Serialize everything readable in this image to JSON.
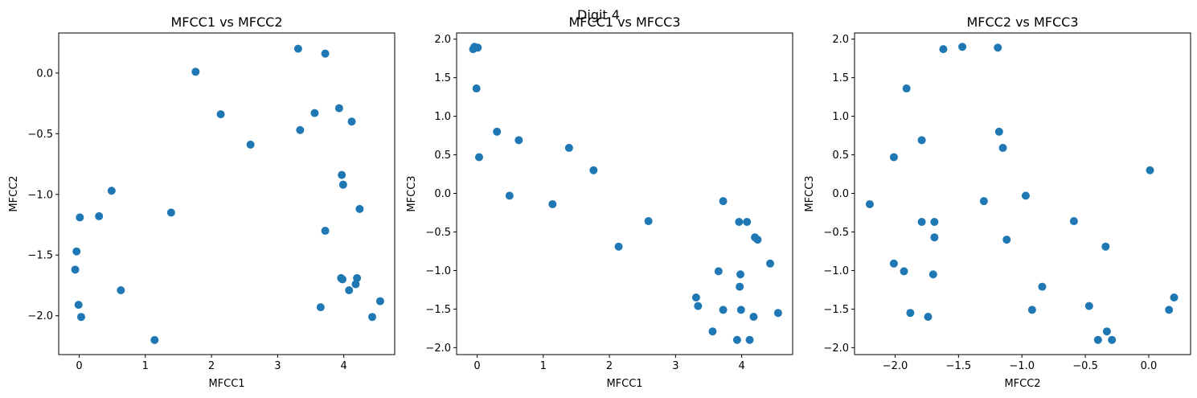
{
  "figure": {
    "suptitle": "Digit 4"
  },
  "chart_data": [
    {
      "type": "scatter",
      "title": "MFCC1 vs MFCC2",
      "xlabel": "MFCC1",
      "ylabel": "MFCC2",
      "xlim": [
        -0.31,
        4.77
      ],
      "ylim": [
        -2.32,
        0.33
      ],
      "xticks": [
        0,
        1,
        2,
        3,
        4
      ],
      "yticks": [
        -2.0,
        -1.5,
        -1.0,
        -0.5,
        0.0
      ],
      "ytick_labels": [
        "−2.0",
        "−1.5",
        "−1.0",
        "−0.5",
        "0.0"
      ],
      "marker_color": "#1f77b4",
      "points": [
        [
          3.31,
          0.2
        ],
        [
          3.72,
          0.16
        ],
        [
          1.76,
          0.01
        ],
        [
          2.14,
          -0.34
        ],
        [
          3.56,
          -0.33
        ],
        [
          3.93,
          -0.29
        ],
        [
          3.34,
          -0.47
        ],
        [
          4.12,
          -0.4
        ],
        [
          2.59,
          -0.59
        ],
        [
          3.97,
          -0.84
        ],
        [
          3.99,
          -0.92
        ],
        [
          0.49,
          -0.97
        ],
        [
          0.01,
          -1.19
        ],
        [
          0.3,
          -1.18
        ],
        [
          1.39,
          -1.15
        ],
        [
          4.24,
          -1.12
        ],
        [
          3.72,
          -1.3
        ],
        [
          -0.04,
          -1.47
        ],
        [
          -0.06,
          -1.62
        ],
        [
          3.96,
          -1.69
        ],
        [
          3.98,
          -1.7
        ],
        [
          4.2,
          -1.69
        ],
        [
          4.18,
          -1.74
        ],
        [
          0.63,
          -1.79
        ],
        [
          4.08,
          -1.79
        ],
        [
          -0.01,
          -1.91
        ],
        [
          3.65,
          -1.93
        ],
        [
          0.03,
          -2.01
        ],
        [
          4.43,
          -2.01
        ],
        [
          4.55,
          -1.88
        ],
        [
          1.14,
          -2.2
        ]
      ]
    },
    {
      "type": "scatter",
      "title": "MFCC1 vs MFCC3",
      "xlabel": "MFCC1",
      "ylabel": "MFCC3",
      "xlim": [
        -0.31,
        4.77
      ],
      "ylim": [
        -2.09,
        2.08
      ],
      "xticks": [
        0,
        1,
        2,
        3,
        4
      ],
      "yticks": [
        -2.0,
        -1.5,
        -1.0,
        -0.5,
        0.0,
        0.5,
        1.0,
        1.5,
        2.0
      ],
      "ytick_labels": [
        "−2.0",
        "−1.5",
        "−1.0",
        "−0.5",
        "0.0",
        "0.5",
        "1.0",
        "1.5",
        "2.0"
      ],
      "marker_color": "#1f77b4",
      "points": [
        [
          -0.06,
          1.87
        ],
        [
          -0.04,
          1.9
        ],
        [
          0.01,
          1.89
        ],
        [
          -0.01,
          1.36
        ],
        [
          0.3,
          0.8
        ],
        [
          0.63,
          0.69
        ],
        [
          0.03,
          0.47
        ],
        [
          1.39,
          0.59
        ],
        [
          1.76,
          0.3
        ],
        [
          0.49,
          -0.03
        ],
        [
          1.14,
          -0.14
        ],
        [
          3.72,
          -0.1
        ],
        [
          2.59,
          -0.36
        ],
        [
          3.96,
          -0.37
        ],
        [
          4.08,
          -0.37
        ],
        [
          4.2,
          -0.57
        ],
        [
          4.24,
          -0.6
        ],
        [
          2.14,
          -0.69
        ],
        [
          4.43,
          -0.91
        ],
        [
          3.65,
          -1.01
        ],
        [
          3.98,
          -1.05
        ],
        [
          3.97,
          -1.21
        ],
        [
          3.31,
          -1.35
        ],
        [
          3.34,
          -1.46
        ],
        [
          3.72,
          -1.51
        ],
        [
          3.99,
          -1.51
        ],
        [
          4.18,
          -1.6
        ],
        [
          4.55,
          -1.55
        ],
        [
          3.56,
          -1.79
        ],
        [
          3.93,
          -1.9
        ],
        [
          4.12,
          -1.9
        ]
      ]
    },
    {
      "type": "scatter",
      "title": "MFCC2 vs MFCC3",
      "xlabel": "MFCC2",
      "ylabel": "MFCC3",
      "xlim": [
        -2.32,
        0.33
      ],
      "ylim": [
        -2.09,
        2.08
      ],
      "xticks": [
        -2.0,
        -1.5,
        -1.0,
        -0.5,
        0.0
      ],
      "xtick_labels": [
        "−2.0",
        "−1.5",
        "−1.0",
        "−0.5",
        "0.0"
      ],
      "yticks": [
        -2.0,
        -1.5,
        -1.0,
        -0.5,
        0.0,
        0.5,
        1.0,
        1.5,
        2.0
      ],
      "ytick_labels": [
        "−2.0",
        "−1.5",
        "−1.0",
        "−0.5",
        "0.0",
        "0.5",
        "1.0",
        "1.5",
        "2.0"
      ],
      "marker_color": "#1f77b4",
      "points": [
        [
          -1.62,
          1.87
        ],
        [
          -1.47,
          1.9
        ],
        [
          -1.19,
          1.89
        ],
        [
          -1.91,
          1.36
        ],
        [
          -1.18,
          0.8
        ],
        [
          -1.79,
          0.69
        ],
        [
          -2.01,
          0.47
        ],
        [
          -1.15,
          0.59
        ],
        [
          0.01,
          0.3
        ],
        [
          -0.97,
          -0.03
        ],
        [
          -2.2,
          -0.14
        ],
        [
          -1.3,
          -0.1
        ],
        [
          -0.59,
          -0.36
        ],
        [
          -1.79,
          -0.37
        ],
        [
          -1.69,
          -0.37
        ],
        [
          -1.69,
          -0.57
        ],
        [
          -1.12,
          -0.6
        ],
        [
          -0.34,
          -0.69
        ],
        [
          -2.01,
          -0.91
        ],
        [
          -1.93,
          -1.01
        ],
        [
          -1.7,
          -1.05
        ],
        [
          -0.84,
          -1.21
        ],
        [
          0.2,
          -1.35
        ],
        [
          -0.47,
          -1.46
        ],
        [
          -0.92,
          -1.51
        ],
        [
          0.16,
          -1.51
        ],
        [
          -1.74,
          -1.6
        ],
        [
          -1.88,
          -1.55
        ],
        [
          -0.33,
          -1.79
        ],
        [
          -0.4,
          -1.9
        ],
        [
          -0.29,
          -1.9
        ]
      ]
    }
  ]
}
